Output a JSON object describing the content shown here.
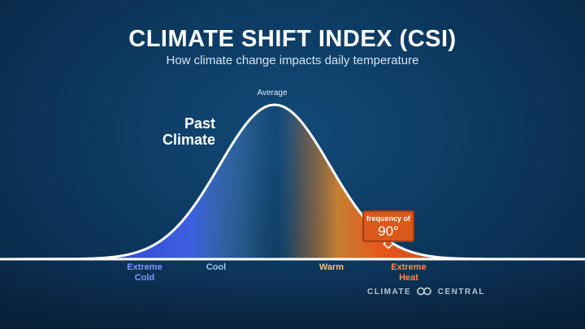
{
  "title": "CLIMATE SHIFT INDEX (CSI)",
  "subtitle": "How climate change impacts daily temperature",
  "curve": {
    "average_label": "Average",
    "name_line1": "Past",
    "name_line2": "Climate"
  },
  "axis_labels": {
    "extreme_cold_line1": "Extreme",
    "extreme_cold_line2": "Cold",
    "cool": "Cool",
    "warm": "Warm",
    "extreme_heat_line1": "Extreme",
    "extreme_heat_line2": "Heat"
  },
  "callout": {
    "label": "frequency of",
    "value": "90°"
  },
  "brand": {
    "left": "CLIMATE",
    "right": "CENTRAL",
    "icon": "chain-link-icon"
  },
  "colors": {
    "cold": "#3a4fe0",
    "cool": "#4f8bc9",
    "warm": "#d0822f",
    "heat": "#e8561c",
    "curve": "#ffffff"
  }
}
